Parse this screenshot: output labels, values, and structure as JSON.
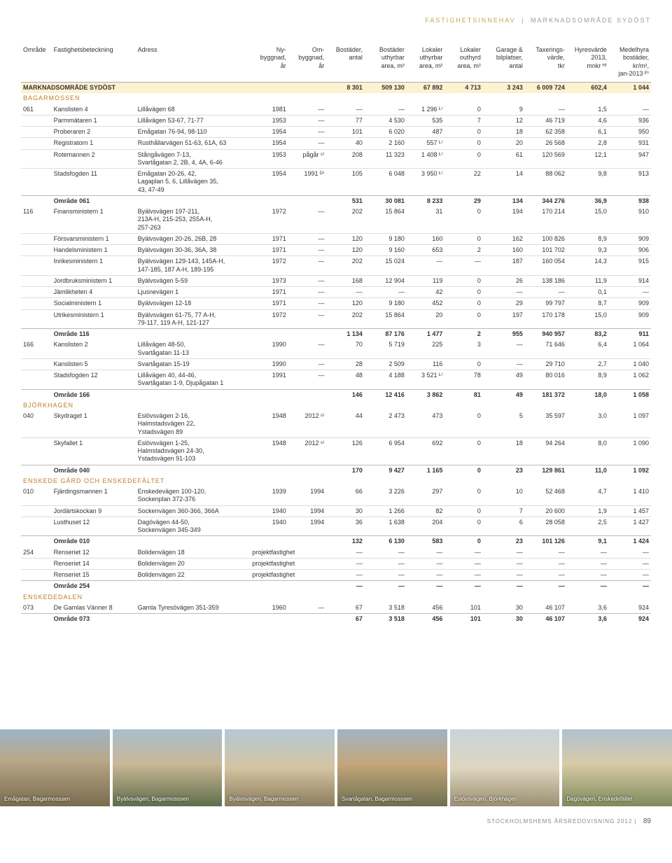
{
  "breadcrumb": {
    "part1": "FASTIGHETSINNEHAV",
    "part2": "MARKNADSOMRÅDE SYDÖST"
  },
  "headers": {
    "omrade": "Område",
    "fastig": "Fastighetsbeteckning",
    "adress": "Adress",
    "ny": "Ny-\nbyggnad,\når",
    "om": "Om-\nbyggnad,\når",
    "antal": "Bostäder,\nantal",
    "butyhr": "Bostäder\nuthyrbar\narea, m²",
    "lutyhr": "Lokaler\nuthyrbar\narea, m²",
    "louthyrd": "Lokaler\nouthyrd\narea, m²",
    "garage": "Garage &\nbilplatser,\nantal",
    "tax": "Taxerings-\nvärde,\ntkr",
    "hyres": "Hyresvärde\n2013,\nmnkr ᴴ⁾",
    "medel": "Medelhyra\nbostäder,\nkr/m²,\njan-2013 ᴾ⁾"
  },
  "market_total": {
    "label": "MARKNADSOMRÅDE SYDÖST",
    "antal": "8 301",
    "butyhr": "509 130",
    "lutyhr": "67 892",
    "louthyrd": "4 713",
    "garage": "3 243",
    "tax": "6 009 724",
    "hyres": "602,4",
    "medel": "1 044"
  },
  "groups": [
    {
      "name": "BAGARMOSSEN",
      "code": "061",
      "rows": [
        {
          "code": "061",
          "f": "Kanslisten 4",
          "a": "Lillåvägen 68",
          "ny": "1981",
          "om": "—",
          "antal": "—",
          "bu": "—",
          "lu": "1 296 ᴸ⁾",
          "lo": "0",
          "g": "9",
          "t": "—",
          "h": "1,5",
          "m": "—"
        },
        {
          "f": "Parmmätaren 1",
          "a": "Lillåvägen 53-67, 71-77",
          "ny": "1953",
          "om": "—",
          "antal": "77",
          "bu": "4 530",
          "lu": "535",
          "lo": "7",
          "g": "12",
          "t": "46 719",
          "h": "4,6",
          "m": "936"
        },
        {
          "f": "Proberaren 2",
          "a": "Emågatan 76-94, 98-110",
          "ny": "1954",
          "om": "—",
          "antal": "101",
          "bu": "6 020",
          "lu": "487",
          "lo": "0",
          "g": "18",
          "t": "62 358",
          "h": "6,1",
          "m": "950"
        },
        {
          "f": "Registratorn 1",
          "a": "Rusthållarvägen 51-63, 61A, 63",
          "ny": "1954",
          "om": "—",
          "antal": "40",
          "bu": "2 160",
          "lu": "557 ᴸ⁾",
          "lo": "0",
          "g": "20",
          "t": "26 568",
          "h": "2,8",
          "m": "931"
        },
        {
          "f": "Rotemannen 2",
          "a": "Stångåvägen 7-13,\nSvartågatan 2, 2B, 4, 4A, 6-46",
          "ny": "1953",
          "om": "pågår ˢ⁾",
          "antal": "208",
          "bu": "11 323",
          "lu": "1 408 ᴸ⁾",
          "lo": "0",
          "g": "61",
          "t": "120 569",
          "h": "12,1",
          "m": "947"
        },
        {
          "f": "Stadsfogden 11",
          "a": "Emågatan 20-26, 42,\nLagaplan 5, 6, Lillåvägen 35,\n43, 47-49",
          "ny": "1954",
          "om": "1991 ᴰ⁾",
          "antal": "105",
          "bu": "6 048",
          "lu": "3 950 ᴸ⁾",
          "lo": "22",
          "g": "14",
          "t": "88 062",
          "h": "9,8",
          "m": "913"
        }
      ],
      "subtotal": {
        "label": "Område 061",
        "antal": "531",
        "bu": "30 081",
        "lu": "8 233",
        "lo": "29",
        "g": "134",
        "t": "344 276",
        "h": "36,9",
        "m": "938"
      }
    },
    {
      "code": "116",
      "rows": [
        {
          "code": "116",
          "f": "Finansministern 1",
          "a": "Byälvsvägen 197-211,\n213A-H, 215-253, 255A-H,\n257-263",
          "ny": "1972",
          "om": "—",
          "antal": "202",
          "bu": "15 864",
          "lu": "31",
          "lo": "0",
          "g": "194",
          "t": "170 214",
          "h": "15,0",
          "m": "910"
        },
        {
          "f": "Försvarsministern 1",
          "a": "Byälvsvägen 20-26, 26B, 28",
          "ny": "1971",
          "om": "—",
          "antal": "120",
          "bu": "9 180",
          "lu": "160",
          "lo": "0",
          "g": "162",
          "t": "100 826",
          "h": "8,9",
          "m": "909"
        },
        {
          "f": "Handelsministern 1",
          "a": "Byälvsvägen 30-36, 36A, 38",
          "ny": "1971",
          "om": "—",
          "antal": "120",
          "bu": "9 160",
          "lu": "653",
          "lo": "2",
          "g": "160",
          "t": "101 702",
          "h": "9,3",
          "m": "906"
        },
        {
          "f": "Inrikesministern 1",
          "a": "Byälvsvägen 129-143, 145A-H,\n147-185, 187 A-H, 189-195",
          "ny": "1972",
          "om": "—",
          "antal": "202",
          "bu": "15 024",
          "lu": "—",
          "lo": "—",
          "g": "187",
          "t": "160 054",
          "h": "14,3",
          "m": "915"
        },
        {
          "f": "Jordbruksministern 1",
          "a": "Byälvsvägen 5-59",
          "ny": "1973",
          "om": "—",
          "antal": "168",
          "bu": "12 904",
          "lu": "119",
          "lo": "0",
          "g": "26",
          "t": "138 186",
          "h": "11,9",
          "m": "914"
        },
        {
          "f": "Jämlikheten 4",
          "a": "Ljusnevägen 1",
          "ny": "1971",
          "om": "—",
          "antal": "—",
          "bu": "—",
          "lu": "42",
          "lo": "0",
          "g": "—",
          "t": "—",
          "h": "0,1",
          "m": "—"
        },
        {
          "f": "Socialministern 1",
          "a": "Byälvsvägen 12-18",
          "ny": "1971",
          "om": "—",
          "antal": "120",
          "bu": "9 180",
          "lu": "452",
          "lo": "0",
          "g": "29",
          "t": "99 797",
          "h": "8,7",
          "m": "909"
        },
        {
          "f": "Utrikesministern 1",
          "a": "Byälvsvägen 61-75, 77 A-H,\n79-117, 119 A-H, 121-127",
          "ny": "1972",
          "om": "—",
          "antal": "202",
          "bu": "15 864",
          "lu": "20",
          "lo": "0",
          "g": "197",
          "t": "170 178",
          "h": "15,0",
          "m": "909"
        }
      ],
      "subtotal": {
        "label": "Område 116",
        "antal": "1 134",
        "bu": "87 176",
        "lu": "1 477",
        "lo": "2",
        "g": "955",
        "t": "940 957",
        "h": "83,2",
        "m": "911"
      }
    },
    {
      "code": "166",
      "rows": [
        {
          "code": "166",
          "f": "Kanslisten 2",
          "a": "Lillåvägen 48-50,\nSvartågatan 11-13",
          "ny": "1990",
          "om": "—",
          "antal": "70",
          "bu": "5 719",
          "lu": "225",
          "lo": "3",
          "g": "—",
          "t": "71 646",
          "h": "6,4",
          "m": "1 064"
        },
        {
          "f": "Kanslisten 5",
          "a": "Svartågatan 15-19",
          "ny": "1990",
          "om": "—",
          "antal": "28",
          "bu": "2 509",
          "lu": "116",
          "lo": "0",
          "g": "—",
          "t": "29 710",
          "h": "2,7",
          "m": "1 040"
        },
        {
          "f": "Stadsfogden 12",
          "a": "Lillåvägen 40, 44-46,\nSvartågatan 1-9, Djupågatan 1",
          "ny": "1991",
          "om": "—",
          "antal": "48",
          "bu": "4 188",
          "lu": "3 521 ᴸ⁾",
          "lo": "78",
          "g": "49",
          "t": "80 016",
          "h": "8,9",
          "m": "1 062"
        }
      ],
      "subtotal": {
        "label": "Område 166",
        "antal": "146",
        "bu": "12 416",
        "lu": "3 862",
        "lo": "81",
        "g": "49",
        "t": "181 372",
        "h": "18,0",
        "m": "1 058"
      }
    },
    {
      "name": "BJÖRKHAGEN",
      "code": "040",
      "rows": [
        {
          "code": "040",
          "f": "Skydraget 1",
          "a": "Eslövsvägen 2-16,\nHalmstadsvägen 22,\nYstadsvägen 89",
          "ny": "1948",
          "om": "2012 ˢ⁾",
          "antal": "44",
          "bu": "2 473",
          "lu": "473",
          "lo": "0",
          "g": "5",
          "t": "35 597",
          "h": "3,0",
          "m": "1 097"
        },
        {
          "f": "Skyfallet 1",
          "a": "Eslövsvägen 1-25,\nHalmstadsvägen 24-30,\nYstadsvägen 91-103",
          "ny": "1948",
          "om": "2012 ˢ⁾",
          "antal": "126",
          "bu": "6 954",
          "lu": "692",
          "lo": "0",
          "g": "18",
          "t": "94 264",
          "h": "8,0",
          "m": "1 090"
        }
      ],
      "subtotal": {
        "label": "Område 040",
        "antal": "170",
        "bu": "9 427",
        "lu": "1 165",
        "lo": "0",
        "g": "23",
        "t": "129 861",
        "h": "11,0",
        "m": "1 092"
      }
    },
    {
      "name": "ENSKEDE GÅRD OCH ENSKEDEFÄLTET",
      "code": "010",
      "rows": [
        {
          "code": "010",
          "f": "Fjärdingsmannen 1",
          "a": "Enskedevägen 100-120,\nSockenplan 372-376",
          "ny": "1939",
          "om": "1994",
          "antal": "66",
          "bu": "3 226",
          "lu": "297",
          "lo": "0",
          "g": "10",
          "t": "52 468",
          "h": "4,7",
          "m": "1 410"
        },
        {
          "f": "Jordärtskockan 9",
          "a": "Sockenvägen 360-366, 366A",
          "ny": "1940",
          "om": "1994",
          "antal": "30",
          "bu": "1 266",
          "lu": "82",
          "lo": "0",
          "g": "7",
          "t": "20 600",
          "h": "1,9",
          "m": "1 457"
        },
        {
          "f": "Lusthuset 12",
          "a": "Dagövägen 44-50,\nSockenvägen 345-349",
          "ny": "1940",
          "om": "1994",
          "antal": "36",
          "bu": "1 638",
          "lu": "204",
          "lo": "0",
          "g": "6",
          "t": "28 058",
          "h": "2,5",
          "m": "1 427"
        }
      ],
      "subtotal": {
        "label": "Område 010",
        "antal": "132",
        "bu": "6 130",
        "lu": "583",
        "lo": "0",
        "g": "23",
        "t": "101 126",
        "h": "9,1",
        "m": "1 424"
      }
    },
    {
      "code": "254",
      "rows": [
        {
          "code": "254",
          "f": "Renseriet 12",
          "a": "Bolidenvägen 18",
          "ny": "projektfastighet",
          "om": "",
          "antal": "—",
          "bu": "—",
          "lu": "—",
          "lo": "—",
          "g": "—",
          "t": "—",
          "h": "—",
          "m": "—"
        },
        {
          "f": "Renseriet 14",
          "a": "Bolidenvägen 20",
          "ny": "projektfastighet",
          "om": "",
          "antal": "—",
          "bu": "—",
          "lu": "—",
          "lo": "—",
          "g": "—",
          "t": "—",
          "h": "—",
          "m": "—"
        },
        {
          "f": "Renseriet 15",
          "a": "Bolidenvägen 22",
          "ny": "projektfastighet",
          "om": "",
          "antal": "—",
          "bu": "—",
          "lu": "—",
          "lo": "—",
          "g": "—",
          "t": "—",
          "h": "—",
          "m": "—"
        }
      ],
      "subtotal": {
        "label": "Område 254",
        "antal": "—",
        "bu": "—",
        "lu": "—",
        "lo": "—",
        "g": "—",
        "t": "—",
        "h": "—",
        "m": "—"
      }
    },
    {
      "name": "ENSKEDEDALEN",
      "code": "073",
      "rows": [
        {
          "code": "073",
          "f": "De Gamlas Vänner 8",
          "a": "Gamla Tyresövägen 351-359",
          "ny": "1960",
          "om": "—",
          "antal": "67",
          "bu": "3 518",
          "lu": "456",
          "lo": "101",
          "g": "30",
          "t": "46 107",
          "h": "3,6",
          "m": "924"
        }
      ],
      "subtotal": {
        "label": "Område 073",
        "antal": "67",
        "bu": "3 518",
        "lu": "456",
        "lo": "101",
        "g": "30",
        "t": "46 107",
        "h": "3,6",
        "m": "924"
      }
    }
  ],
  "photos": [
    {
      "caption": "Emågatan, Bagarmosssen",
      "bg": "linear-gradient(#9db5c8,#b8a788 40%,#7a6b4f)"
    },
    {
      "caption": "Byälvsvägen, Bagarmosssen",
      "bg": "linear-gradient(#a8bed0,#c9b896 45%,#5f6d4a)"
    },
    {
      "caption": "Byälvsvägen, Bagarmossen",
      "bg": "linear-gradient(#b4c8d8,#d4c4a0 50%,#8a7c5e)"
    },
    {
      "caption": "Svartågatan, Bagarmosssen",
      "bg": "linear-gradient(#9fb4c4,#c4a67a 45%,#6e7050)"
    },
    {
      "caption": "Eslövsvägen, Björkhagen",
      "bg": "linear-gradient(#c8d4dc,#ded6c0 50%,#9a8f70)"
    },
    {
      "caption": "Dagövägen, Enskedefältet",
      "bg": "linear-gradient(#aec2d0,#d8cba8 45%,#7f8a5a)"
    }
  ],
  "footer": {
    "text": "STOCKHOLMSHEMS ÅRSREDOVISNING 2012",
    "page": "89"
  }
}
